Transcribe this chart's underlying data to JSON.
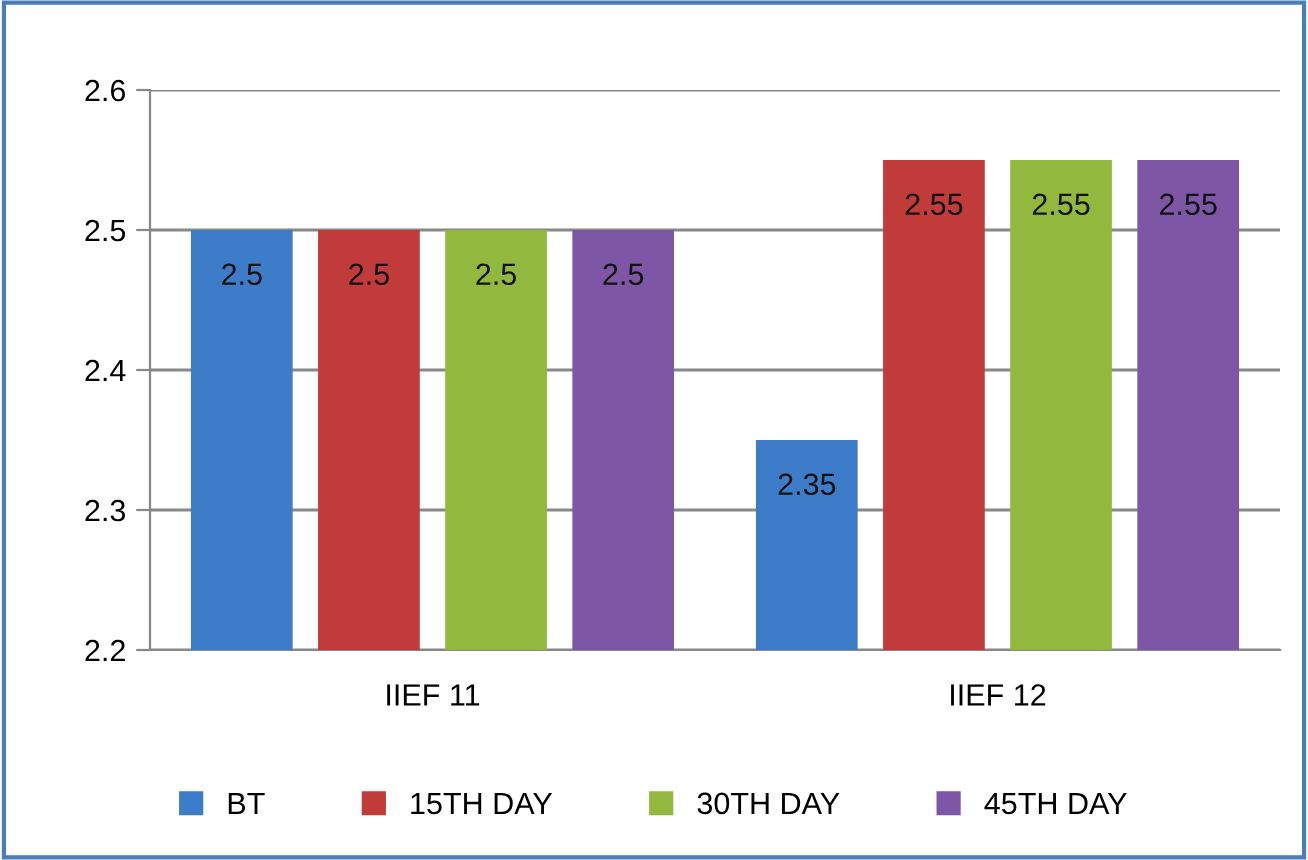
{
  "chart_data": {
    "type": "bar",
    "categories": [
      "IIEF 11",
      "IIEF 12"
    ],
    "series": [
      {
        "name": "BT",
        "color": "#3d7cc9",
        "values": [
          2.5,
          2.35
        ]
      },
      {
        "name": "15TH DAY",
        "color": "#c23b3b",
        "values": [
          2.5,
          2.55
        ]
      },
      {
        "name": "30TH DAY",
        "color": "#92b83e",
        "values": [
          2.5,
          2.55
        ]
      },
      {
        "name": "45TH DAY",
        "color": "#7d57a5",
        "values": [
          2.5,
          2.55
        ]
      }
    ],
    "ylim": [
      2.2,
      2.6
    ],
    "yticks": [
      2.2,
      2.3,
      2.4,
      2.5,
      2.6
    ],
    "grid": "y",
    "legend": "bottom",
    "data_labels": true
  }
}
